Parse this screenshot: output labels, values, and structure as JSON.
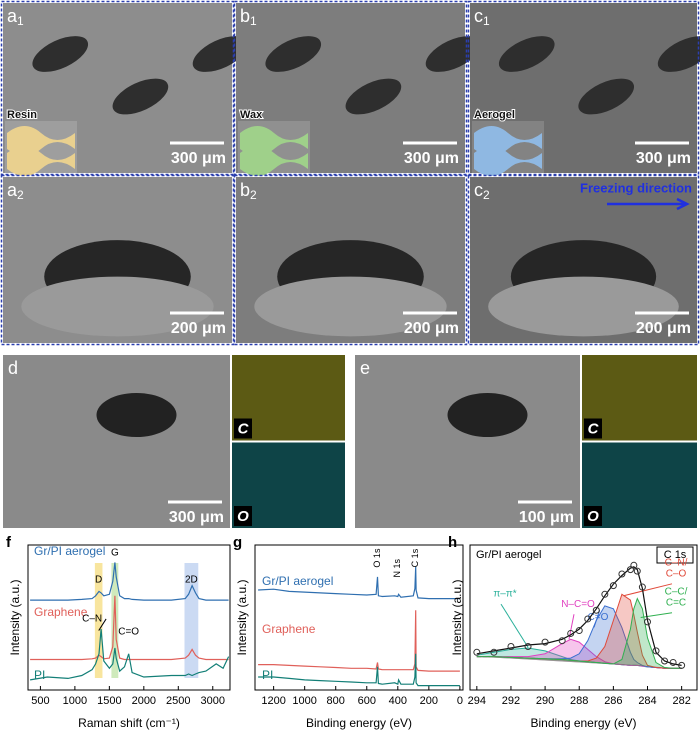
{
  "panels": [
    {
      "label": "a",
      "sub": "1",
      "inset": "Resin",
      "inset_color": "#e9d08f",
      "scale_bar": "300 μm"
    },
    {
      "label": "b",
      "sub": "1",
      "inset": "Wax",
      "inset_color": "#9fd08a",
      "scale_bar": "300 μm"
    },
    {
      "label": "c",
      "sub": "1",
      "inset": "Aerogel",
      "inset_color": "#8fb8e2",
      "scale_bar": "300 μm"
    },
    {
      "label": "a",
      "sub": "2",
      "scale_bar": "200 μm"
    },
    {
      "label": "b",
      "sub": "2",
      "scale_bar": "200 μm"
    },
    {
      "label": "c",
      "sub": "2",
      "scale_bar": "200 μm",
      "note": "Freezing direction"
    }
  ],
  "eds": [
    {
      "label": "d",
      "scale_bar": "300 μm",
      "maps": [
        "C",
        "O"
      ]
    },
    {
      "label": "e",
      "scale_bar": "100 μm",
      "maps": [
        "C",
        "O"
      ]
    }
  ],
  "chart_data": [
    {
      "type": "line",
      "panel_label": "f",
      "xlabel": "Raman shift (cm⁻¹)",
      "ylabel": "Intensity (a.u.)",
      "x": [
        350,
        600,
        900,
        1100,
        1250,
        1300,
        1350,
        1380,
        1420,
        1500,
        1550,
        1580,
        1600,
        1650,
        1720,
        1780,
        1830,
        2000,
        2400,
        2600,
        2650,
        2700,
        2750,
        2800,
        2900,
        3050,
        3150,
        3230
      ],
      "xlim": [
        320,
        3250
      ],
      "xticks": [
        500,
        1000,
        1500,
        2000,
        2500,
        3000
      ],
      "ylim": [
        0,
        10
      ],
      "bands": [
        {
          "label": "D",
          "color": "#f6dc7e"
        },
        {
          "label": "G",
          "color": "#bfe3a5"
        },
        {
          "label": "2D",
          "color": "#b9cdef"
        }
      ],
      "annotations": [
        "C–N",
        "C=O"
      ],
      "series": [
        {
          "name": "Gr/PI aerogel",
          "color": "#2f6fb0",
          "values": [
            6.2,
            6.2,
            6.2,
            6.25,
            6.3,
            6.5,
            6.8,
            6.7,
            6.5,
            6.6,
            7.5,
            8.8,
            7.8,
            6.5,
            6.3,
            6.3,
            6.25,
            6.2,
            6.2,
            6.3,
            6.6,
            7.2,
            6.7,
            6.3,
            6.2,
            6.2,
            6.2,
            6.2
          ]
        },
        {
          "name": "Graphene",
          "color": "#e0605a",
          "values": [
            2.1,
            2.1,
            2.1,
            2.1,
            2.15,
            2.2,
            2.4,
            2.3,
            2.15,
            2.2,
            3.0,
            6.5,
            3.5,
            2.2,
            2.1,
            2.1,
            2.1,
            2.1,
            2.1,
            2.2,
            2.4,
            2.8,
            2.4,
            2.2,
            2.1,
            2.1,
            2.1,
            2.1
          ]
        },
        {
          "name": "PI",
          "color": "#137f77",
          "values": [
            0.7,
            0.9,
            0.8,
            1.0,
            1.4,
            1.8,
            2.5,
            4.2,
            2.0,
            1.5,
            1.8,
            2.9,
            2.2,
            1.3,
            1.6,
            2.5,
            1.2,
            0.9,
            1.0,
            1.0,
            1.1,
            1.0,
            1.1,
            1.2,
            1.3,
            1.8,
            1.5,
            2.3
          ]
        }
      ]
    },
    {
      "type": "line",
      "panel_label": "g",
      "xlabel": "Binding energy (eV)",
      "ylabel": "Intensity (a.u.)",
      "x": [
        1300,
        1200,
        1100,
        1000,
        900,
        800,
        700,
        600,
        540,
        531,
        525,
        500,
        420,
        400,
        395,
        380,
        300,
        290,
        285,
        282,
        270,
        200,
        100,
        0
      ],
      "xlim": [
        1320,
        -20
      ],
      "xticks": [
        1200,
        1000,
        800,
        600,
        400,
        200,
        0
      ],
      "ylim": [
        0,
        10
      ],
      "annotations": [
        "O 1s",
        "N 1s",
        "C 1s"
      ],
      "series": [
        {
          "name": "Gr/PI aerogel",
          "color": "#2f6fb0",
          "values": [
            6.9,
            6.95,
            6.8,
            6.75,
            6.7,
            6.65,
            6.6,
            6.55,
            6.6,
            7.8,
            6.5,
            6.45,
            6.5,
            6.45,
            6.6,
            6.4,
            6.5,
            7.0,
            8.5,
            6.9,
            6.35,
            6.3,
            6.3,
            6.3
          ]
        },
        {
          "name": "Graphene",
          "color": "#e0605a",
          "values": [
            1.75,
            1.75,
            1.7,
            1.65,
            1.6,
            1.55,
            1.5,
            1.5,
            1.45,
            1.9,
            1.45,
            1.4,
            1.4,
            1.4,
            1.4,
            1.4,
            1.4,
            1.8,
            5.5,
            1.6,
            1.35,
            1.3,
            1.3,
            1.3
          ]
        },
        {
          "name": "PI",
          "color": "#137f77",
          "values": [
            0.9,
            0.9,
            0.8,
            0.7,
            0.65,
            0.6,
            0.55,
            0.5,
            0.5,
            1.6,
            0.45,
            0.4,
            0.5,
            0.4,
            0.7,
            0.4,
            0.4,
            0.9,
            2.5,
            0.5,
            0.3,
            0.3,
            0.3,
            0.3
          ]
        }
      ]
    },
    {
      "type": "line",
      "panel_label": "h",
      "title": "Gr/PI aerogel",
      "legend": "C 1s",
      "xlabel": "Binding energy (eV)",
      "ylabel": "Intensity (a.u.)",
      "x": [
        294,
        293,
        292,
        291,
        290,
        289,
        288.5,
        288,
        287.5,
        287,
        286.5,
        286,
        285.5,
        285,
        284.8,
        284.6,
        284.3,
        284,
        283.5,
        283,
        282.5,
        282
      ],
      "xlim": [
        294.4,
        281.1
      ],
      "xticks": [
        294,
        292,
        290,
        288,
        286,
        284,
        282
      ],
      "ylim": [
        0,
        10
      ],
      "series": [
        {
          "color": "#2aa892",
          "dashed": true,
          "values": [
            2.3,
            2.3,
            2.25,
            2.2,
            2.15,
            2.1,
            2.05,
            2.0,
            1.95,
            1.9,
            1.85,
            1.8,
            1.75,
            1.7,
            1.7,
            1.7,
            1.65,
            1.6,
            1.55,
            1.5,
            1.5,
            1.5
          ]
        },
        {
          "name_lines": [
            "π–π*"
          ],
          "color": "#2ab09a",
          "fill": true,
          "values": [
            2.4,
            2.6,
            2.8,
            2.9,
            2.7,
            2.3,
            2.1,
            2.0,
            1.95,
            1.9,
            1.85,
            1.8,
            1.75,
            1.7,
            1.7,
            1.7,
            1.65,
            1.6,
            1.55,
            1.5,
            1.5,
            1.5
          ]
        },
        {
          "name_lines": [
            "N–C=O"
          ],
          "color": "#e040c0",
          "fill": true,
          "values": [
            2.3,
            2.3,
            2.3,
            2.3,
            2.5,
            3.2,
            3.5,
            3.3,
            2.8,
            2.3,
            1.95,
            1.8,
            1.75,
            1.7,
            1.7,
            1.7,
            1.65,
            1.6,
            1.55,
            1.5,
            1.5,
            1.5
          ]
        },
        {
          "name_lines": [
            "C=O"
          ],
          "color": "#3a6fd0",
          "fill": true,
          "values": [
            2.3,
            2.3,
            2.25,
            2.2,
            2.15,
            2.15,
            2.2,
            2.5,
            3.4,
            4.8,
            5.8,
            5.6,
            4.3,
            2.6,
            2.1,
            1.9,
            1.7,
            1.6,
            1.55,
            1.5,
            1.5,
            1.5
          ]
        },
        {
          "name_lines": [
            "C–N/",
            "C–O"
          ],
          "color": "#e04a3a",
          "fill": true,
          "values": [
            2.3,
            2.3,
            2.25,
            2.2,
            2.15,
            2.1,
            2.05,
            2.0,
            2.0,
            2.2,
            3.0,
            4.8,
            6.6,
            6.2,
            5.2,
            4.0,
            2.4,
            1.7,
            1.55,
            1.5,
            1.5,
            1.5
          ]
        },
        {
          "name_lines": [
            "C–C/",
            "C=C"
          ],
          "color": "#30b050",
          "fill": true,
          "values": [
            2.3,
            2.3,
            2.25,
            2.2,
            2.15,
            2.1,
            2.05,
            2.0,
            1.95,
            1.9,
            1.85,
            1.8,
            2.1,
            4.2,
            5.6,
            6.3,
            5.6,
            3.6,
            1.9,
            1.55,
            1.5,
            1.5
          ]
        },
        {
          "color": "#111111",
          "values": [
            2.5,
            2.7,
            2.9,
            3.1,
            3.2,
            3.5,
            3.8,
            4.2,
            4.8,
            5.6,
            6.5,
            7.3,
            7.9,
            8.4,
            8.5,
            8.3,
            7.0,
            4.8,
            2.6,
            2.0,
            1.8,
            1.7
          ]
        },
        {
          "color": "#333333",
          "marker": "circle",
          "values": [
            2.6,
            2.6,
            3.0,
            3.0,
            3.3,
            3.4,
            3.9,
            4.1,
            4.9,
            5.5,
            6.6,
            7.2,
            8.0,
            8.3,
            8.6,
            8.2,
            7.1,
            4.7,
            2.7,
            2.0,
            1.9,
            1.7
          ]
        }
      ]
    }
  ]
}
